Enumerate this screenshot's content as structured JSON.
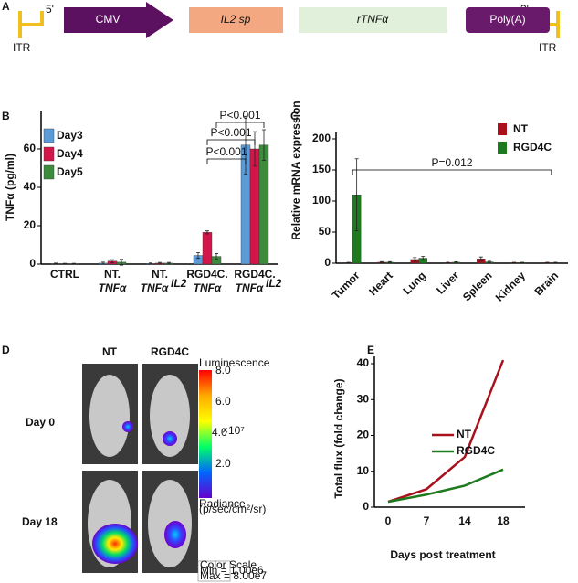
{
  "panel_a": {
    "label": "A",
    "five_prime": "5'",
    "three_prime": "3'",
    "itr_left": "ITR",
    "itr_right": "ITR",
    "elements": [
      "CMV",
      "IL2 sp",
      "rTNFα",
      "Poly(A)"
    ]
  },
  "panel_d": {
    "label": "D",
    "columns": [
      "NT",
      "RGD4C"
    ],
    "rows": [
      "Day 0",
      "Day 18"
    ],
    "scale_title": "Luminescence",
    "scale_ticks": [
      "8.0",
      "6.0",
      "4.0",
      "2.0"
    ],
    "scale_exponent": "×10⁷",
    "scale_unit": "Radiance",
    "scale_unit_detail": "(p/sec/cm²/sr)",
    "scale_box": [
      "Color Scale",
      "Min = 1.00e6",
      "Max = 8.00e7"
    ]
  },
  "chart_data": [
    {
      "type": "bar",
      "label": "B",
      "ylabel": "TNFα (pg/ml)",
      "categories": [
        [
          "CTRL"
        ],
        [
          "NT.",
          "TNFα"
        ],
        [
          "NT.",
          "TNFα",
          "IL2"
        ],
        [
          "RGD4C.",
          "TNFα"
        ],
        [
          "RGD4C.",
          "TNFα",
          "IL2"
        ]
      ],
      "series": [
        {
          "name": "Day3",
          "color": "#5b9bd8",
          "values": [
            0.3,
            0.5,
            0.3,
            4.5,
            62
          ],
          "errors": [
            0.2,
            0.5,
            0.3,
            1.5,
            15
          ]
        },
        {
          "name": "Day4",
          "color": "#d3164a",
          "values": [
            0.2,
            1.5,
            0.5,
            16.5,
            60
          ],
          "errors": [
            0.2,
            0.8,
            0.4,
            0.8,
            9
          ]
        },
        {
          "name": "Day5",
          "color": "#3c8c3c",
          "values": [
            0.2,
            1,
            0.5,
            4,
            62
          ],
          "errors": [
            0.2,
            1.5,
            0.4,
            1.5,
            8
          ]
        }
      ],
      "ylim": [
        0,
        80
      ],
      "yticks": [
        0,
        20,
        40,
        60
      ],
      "annotations": [
        "P<0.001",
        "P<0.001",
        "P<0.001"
      ]
    },
    {
      "type": "bar",
      "label": "C",
      "ylabel": "Relative mRNA expression",
      "categories": [
        "Tumor",
        "Heart",
        "Lung",
        "Liver",
        "Spleen",
        "Kidney",
        "Brain"
      ],
      "series": [
        {
          "name": "NT",
          "color": "#a8101c",
          "values": [
            1,
            1.5,
            6,
            1,
            7,
            1,
            1
          ],
          "errors": [
            0.5,
            1,
            3,
            0.5,
            3,
            0.5,
            0.5
          ]
        },
        {
          "name": "RGD4C",
          "color": "#1e7a1e",
          "values": [
            110,
            1.5,
            8,
            1.5,
            2,
            1,
            1
          ],
          "errors": [
            58,
            1,
            3,
            0.8,
            1,
            0.5,
            0.5
          ]
        }
      ],
      "ylim": [
        0,
        200
      ],
      "yticks": [
        0,
        50,
        100,
        150,
        200
      ],
      "annotations": [
        "P=0.012"
      ]
    },
    {
      "type": "line",
      "label": "E",
      "ylabel": "Total flux (fold change)",
      "xlabel": "Days post treatment",
      "categories": [
        "0",
        "7",
        "14",
        "18"
      ],
      "series": [
        {
          "name": "NT",
          "color": "#a8101c",
          "values": [
            1.5,
            5,
            14,
            41
          ]
        },
        {
          "name": "RGD4C",
          "color": "#1e7a1e",
          "values": [
            1.5,
            3.5,
            6,
            10.5
          ]
        }
      ],
      "ylim": [
        0,
        40
      ],
      "yticks": [
        0,
        10,
        20,
        30,
        40
      ]
    }
  ]
}
